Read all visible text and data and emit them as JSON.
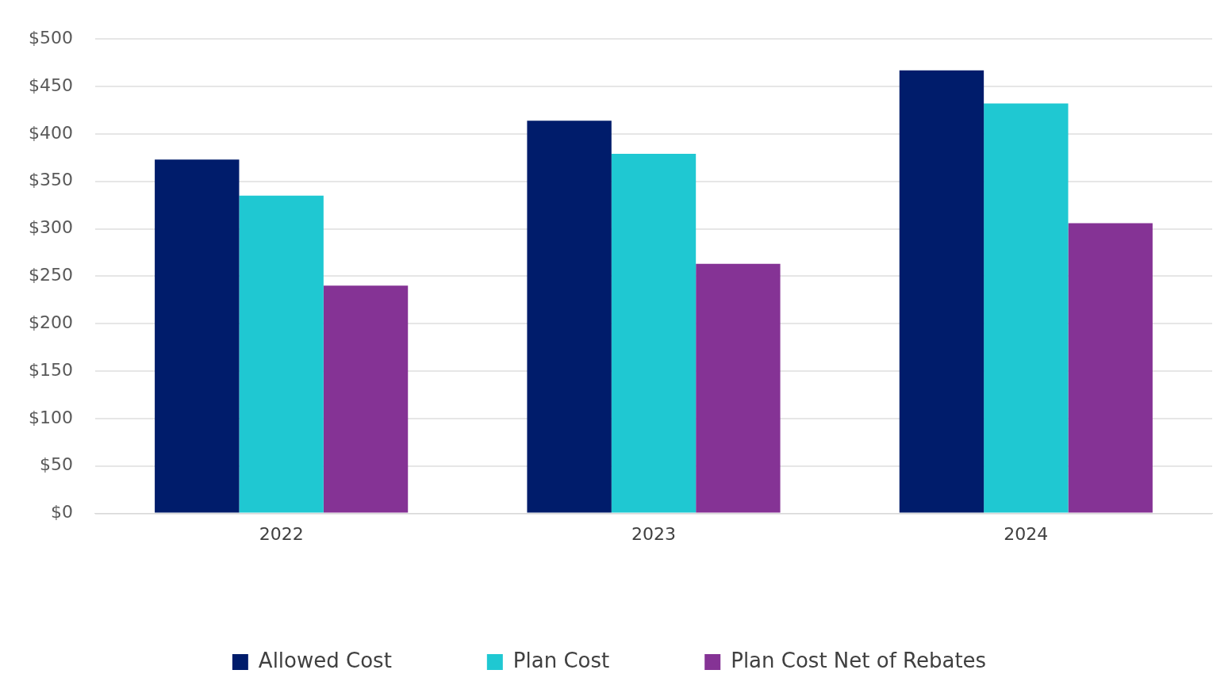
{
  "chart_data": {
    "type": "bar",
    "categories": [
      "2022",
      "2023",
      "2024"
    ],
    "series": [
      {
        "name": "Allowed Cost",
        "color": "#001c6b",
        "values": [
          373,
          414,
          467
        ]
      },
      {
        "name": "Plan Cost",
        "color": "#1fc8d2",
        "values": [
          335,
          379,
          432
        ]
      },
      {
        "name": "Plan Cost Net of Rebates",
        "color": "#853395",
        "values": [
          240,
          263,
          306
        ]
      }
    ],
    "ylim": [
      0,
      500
    ],
    "yticks": [
      {
        "value": 0,
        "label": "$0"
      },
      {
        "value": 50,
        "label": "$50"
      },
      {
        "value": 100,
        "label": "$100"
      },
      {
        "value": 150,
        "label": "$150"
      },
      {
        "value": 200,
        "label": "$200"
      },
      {
        "value": 250,
        "label": "$250"
      },
      {
        "value": 300,
        "label": "$300"
      },
      {
        "value": 350,
        "label": "$350"
      },
      {
        "value": 400,
        "label": "$400"
      },
      {
        "value": 450,
        "label": "$450"
      },
      {
        "value": 500,
        "label": "$500"
      }
    ],
    "grid": "y",
    "legend": "bottom"
  }
}
